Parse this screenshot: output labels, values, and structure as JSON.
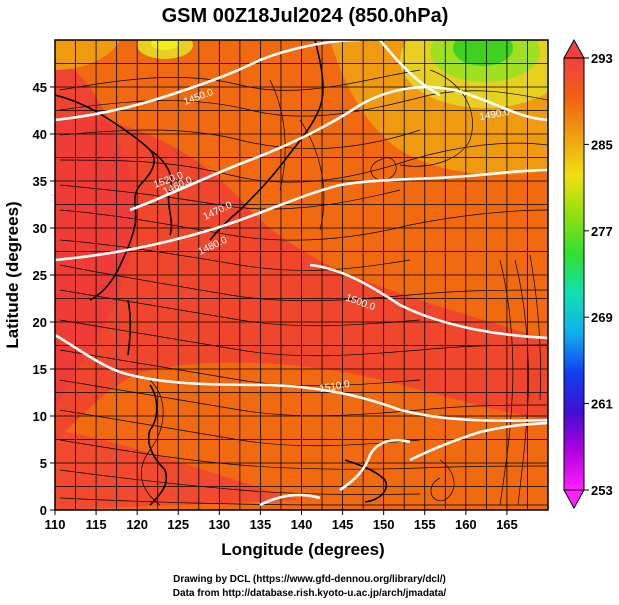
{
  "map": {
    "title": "GSM 00Z18Jul2024 (850.0hPa)",
    "xlabel": "Longitude (degrees)",
    "ylabel": "Latitude  (degrees)",
    "lon_range": [
      110,
      170
    ],
    "lat_range": [
      0,
      50
    ],
    "lon_ticks": [
      "110",
      "115",
      "120",
      "125",
      "130",
      "135",
      "140",
      "145",
      "150",
      "155",
      "160",
      "165"
    ],
    "lat_ticks": [
      "0",
      "5",
      "10",
      "15",
      "20",
      "25",
      "30",
      "35",
      "40",
      "45"
    ],
    "colorbar_ticks": [
      "253",
      "261",
      "269",
      "277",
      "285",
      "293"
    ],
    "contour_labels": [
      "1450.0",
      "1460.0",
      "1470.0",
      "1480.0",
      "1490.0",
      "1500.0",
      "1510.0",
      "1520.0"
    ],
    "colors": {
      "warm_red": "#f04030",
      "orange": "#f26a10",
      "yellow": "#e8d020",
      "green": "#40d020",
      "contour": "#ffffff",
      "streamline": "#000000"
    },
    "colorbar_colors": [
      "#ff20ff",
      "#b000e0",
      "#4010d0",
      "#1040f0",
      "#10b0f0",
      "#10e0b0",
      "#30e030",
      "#90e010",
      "#f0e010",
      "#f0a010",
      "#f06010",
      "#f04040"
    ]
  },
  "credits": {
    "line1": "Drawing by DCL (https://www.gfd-dennou.org/library/dcl/)",
    "line2": "Data from http://database.rish.kyoto-u.ac.jp/arch/jmadata/"
  }
}
